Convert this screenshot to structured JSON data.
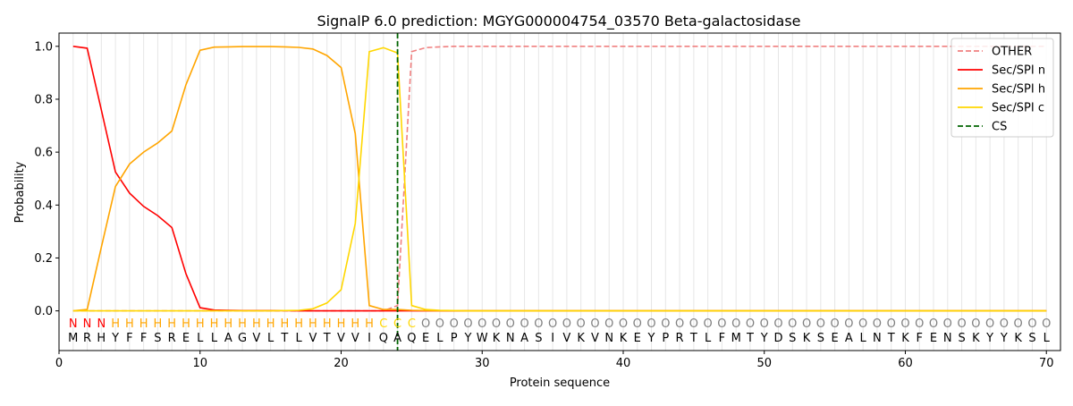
{
  "chart_data": {
    "type": "line",
    "title": "SignalP 6.0 prediction: MGYG000004754_03570 Beta-galactosidase",
    "xlabel": "Protein sequence",
    "ylabel": "Probability",
    "xlim": [
      0,
      71
    ],
    "ylim": [
      -0.15,
      1.05
    ],
    "xticks": [
      0,
      10,
      20,
      30,
      40,
      50,
      60,
      70
    ],
    "yticks": [
      0.0,
      0.2,
      0.4,
      0.6,
      0.8,
      1.0
    ],
    "xtick_labels": [
      "0",
      "10",
      "20",
      "30",
      "40",
      "50",
      "60",
      "70"
    ],
    "ytick_labels": [
      "0.0",
      "0.2",
      "0.4",
      "0.6",
      "0.8",
      "1.0"
    ],
    "grid": "vertical lines at each residue",
    "legend_position": "upper-right",
    "sequence": "MRHYFFSRELLAGVLTLVTVVIQAQELPYWKNASIVKVNKEYPRTLFMTYDSKSEALNTKFENSKYYKSL",
    "labels": "NNNHHHHHHHHHHHHHHHHHHHCCCOOOOOOOOOOOOOOOOOOOOOOOOOOOOOOOOOOOOOOOOOOOOOO",
    "label_colors": {
      "N": "#ff0000",
      "H": "#ffa500",
      "C": "#ffd700",
      "O": "#808080"
    },
    "x": [
      1,
      2,
      3,
      4,
      5,
      6,
      7,
      8,
      9,
      10,
      11,
      12,
      13,
      14,
      15,
      16,
      17,
      18,
      19,
      20,
      21,
      22,
      23,
      24,
      25,
      26,
      27,
      28,
      29,
      30,
      31,
      32,
      33,
      34,
      35,
      36,
      37,
      38,
      39,
      40,
      41,
      42,
      43,
      44,
      45,
      46,
      47,
      48,
      49,
      50,
      51,
      52,
      53,
      54,
      55,
      56,
      57,
      58,
      59,
      60,
      61,
      62,
      63,
      64,
      65,
      66,
      67,
      68,
      69,
      70
    ],
    "cs_position": 24,
    "series": [
      {
        "name": "OTHER",
        "color": "#f08080",
        "style": "dashed",
        "values": [
          0,
          0,
          0,
          0,
          0,
          0,
          0,
          0,
          0,
          0,
          0,
          0,
          0,
          0,
          0,
          0,
          0,
          0,
          0,
          0,
          0,
          0,
          0,
          0.02,
          0.98,
          0.995,
          0.998,
          1,
          1,
          1,
          1,
          1,
          1,
          1,
          1,
          1,
          1,
          1,
          1,
          1,
          1,
          1,
          1,
          1,
          1,
          1,
          1,
          1,
          1,
          1,
          1,
          1,
          1,
          1,
          1,
          1,
          1,
          1,
          1,
          1,
          1,
          1,
          1,
          1,
          1,
          1,
          1,
          1,
          1,
          1
        ]
      },
      {
        "name": "Sec/SPI n",
        "color": "#ff0000",
        "style": "solid",
        "values": [
          1.0,
          0.993,
          0.76,
          0.525,
          0.445,
          0.395,
          0.36,
          0.315,
          0.14,
          0.012,
          0.003,
          0.002,
          0.001,
          0.001,
          0.001,
          0.001,
          0,
          0,
          0,
          0,
          0,
          0,
          0,
          0,
          0,
          0,
          0,
          0,
          0,
          0,
          0,
          0,
          0,
          0,
          0,
          0,
          0,
          0,
          0,
          0,
          0,
          0,
          0,
          0,
          0,
          0,
          0,
          0,
          0,
          0,
          0,
          0,
          0,
          0,
          0,
          0,
          0,
          0,
          0,
          0,
          0,
          0,
          0,
          0,
          0,
          0,
          0,
          0,
          0,
          0
        ]
      },
      {
        "name": "Sec/SPI h",
        "color": "#ffa500",
        "style": "solid",
        "values": [
          0,
          0.005,
          0.24,
          0.47,
          0.555,
          0.6,
          0.635,
          0.68,
          0.855,
          0.985,
          0.997,
          0.998,
          0.999,
          0.999,
          0.999,
          0.998,
          0.996,
          0.99,
          0.965,
          0.92,
          0.67,
          0.02,
          0.005,
          0.005,
          0.002,
          0.001,
          0,
          0,
          0,
          0,
          0,
          0,
          0,
          0,
          0,
          0,
          0,
          0,
          0,
          0,
          0,
          0,
          0,
          0,
          0,
          0,
          0,
          0,
          0,
          0,
          0,
          0,
          0,
          0,
          0,
          0,
          0,
          0,
          0,
          0,
          0,
          0,
          0,
          0,
          0,
          0,
          0,
          0,
          0,
          0
        ]
      },
      {
        "name": "Sec/SPI c",
        "color": "#ffd700",
        "style": "solid",
        "values": [
          0,
          0,
          0,
          0,
          0,
          0,
          0,
          0,
          0,
          0,
          0,
          0,
          0,
          0,
          0,
          0.001,
          0.002,
          0.008,
          0.03,
          0.08,
          0.33,
          0.98,
          0.995,
          0.975,
          0.02,
          0.005,
          0.002,
          0.001,
          0,
          0,
          0,
          0,
          0,
          0,
          0,
          0,
          0,
          0,
          0,
          0,
          0,
          0,
          0,
          0,
          0,
          0,
          0,
          0,
          0,
          0,
          0,
          0,
          0,
          0,
          0,
          0,
          0,
          0,
          0,
          0,
          0,
          0,
          0,
          0,
          0,
          0,
          0,
          0,
          0,
          0
        ]
      },
      {
        "name": "CS",
        "color": "#006400",
        "style": "dashed"
      }
    ]
  }
}
